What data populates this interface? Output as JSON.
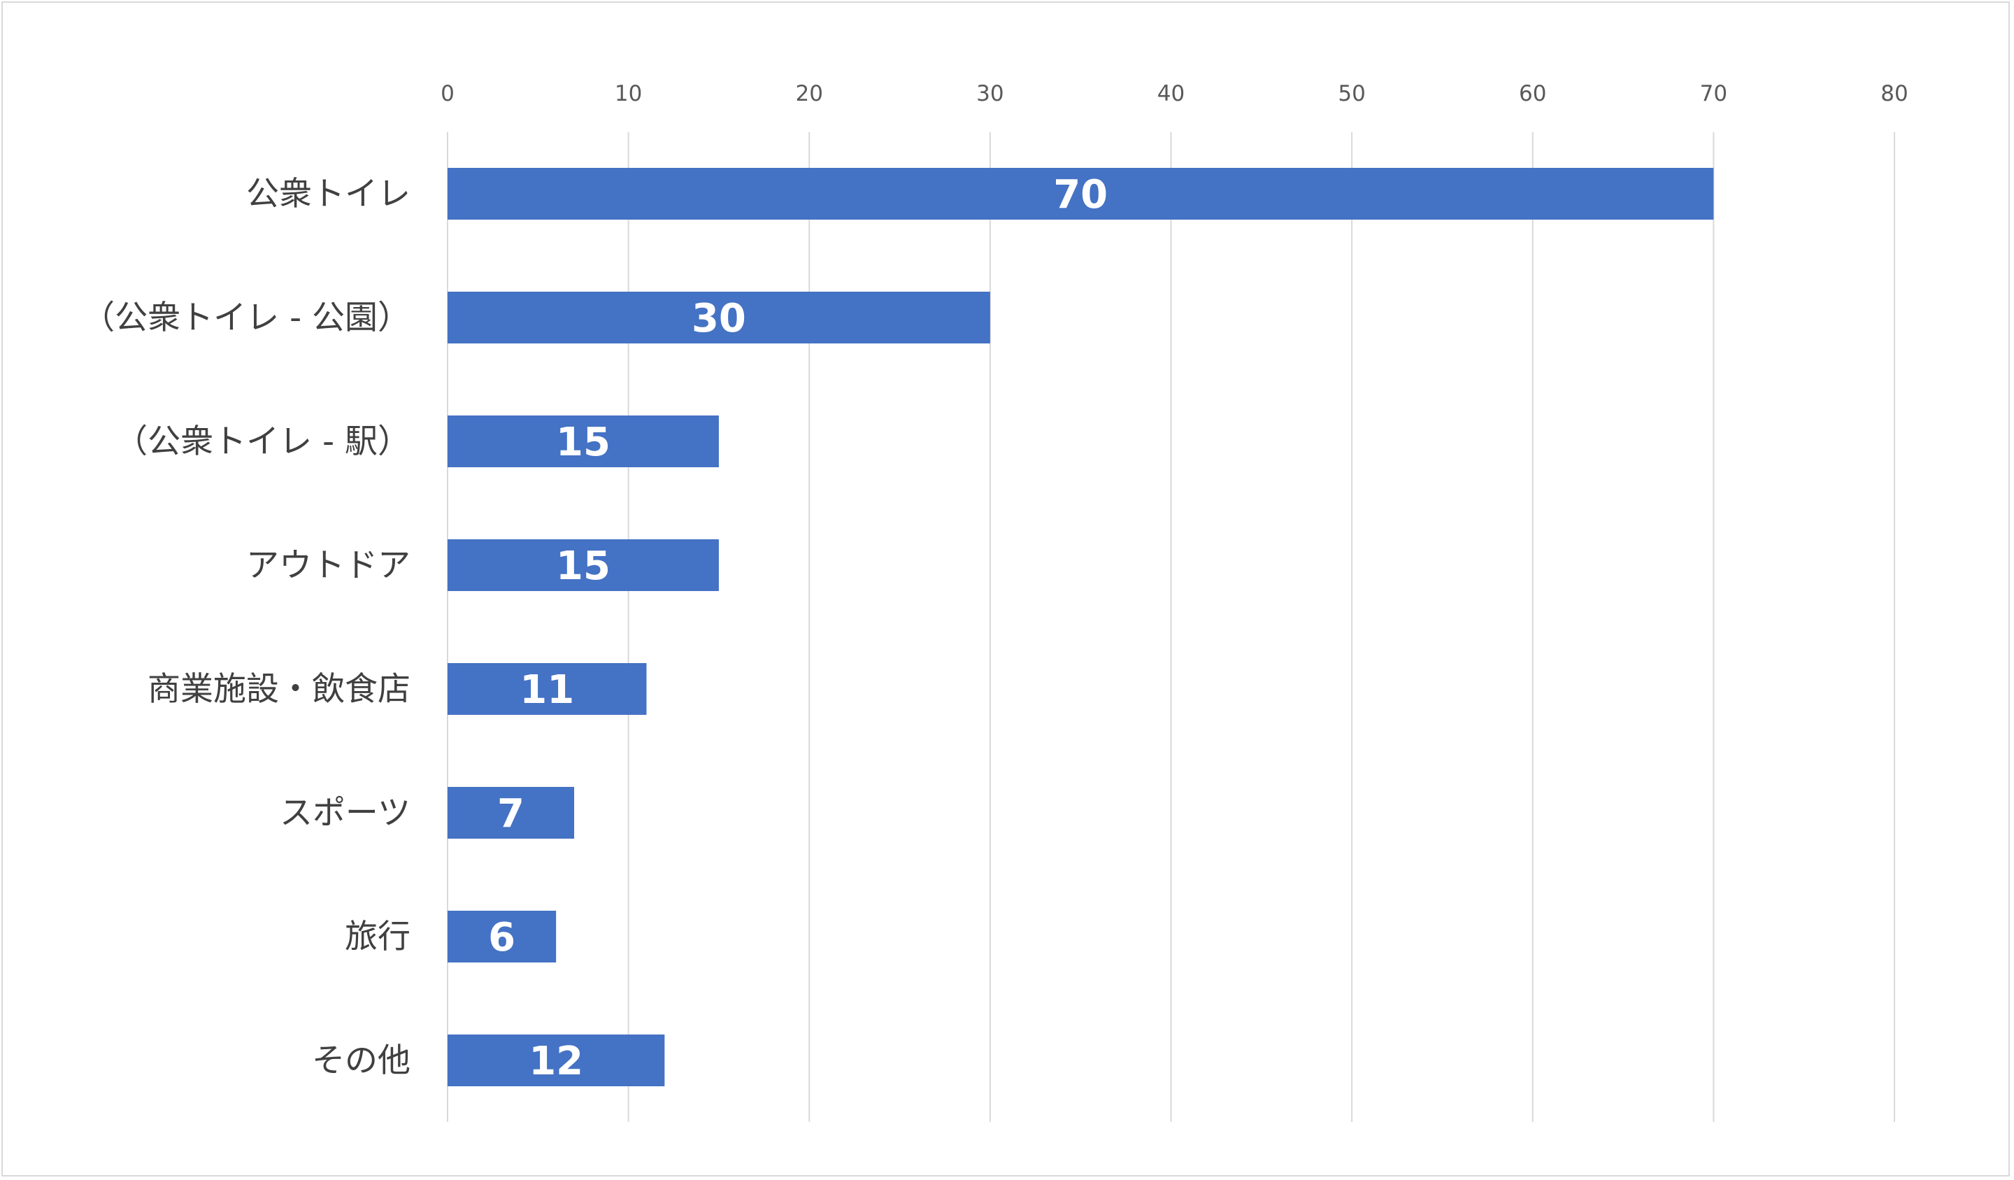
{
  "chart_data": {
    "type": "bar",
    "orientation": "horizontal",
    "title": "",
    "xlabel": "",
    "ylabel": "",
    "categories": [
      "公衆トイレ",
      "（公衆トイレ - 公園）",
      "（公衆トイレ - 駅）",
      "アウトドア",
      "商業施設・飲食店",
      "スポーツ",
      "旅行",
      "その他"
    ],
    "values": [
      70,
      30,
      15,
      15,
      11,
      7,
      6,
      12
    ],
    "data_labels": [
      "70",
      "30",
      "15",
      "15",
      "11",
      "7",
      "6",
      "12"
    ],
    "xlim": [
      0,
      80
    ],
    "ticks": [
      0,
      10,
      20,
      30,
      40,
      50,
      60,
      70,
      80
    ],
    "tick_labels": [
      "0",
      "10",
      "20",
      "30",
      "40",
      "50",
      "60",
      "70",
      "80"
    ],
    "axis_position": "top",
    "grid": true,
    "legend": "none",
    "colors": {
      "bar": "#4472C4",
      "grid": "#D9D9D9",
      "data_label": "#FFFFFF",
      "tick_label": "#595959",
      "category_label": "#404040"
    }
  }
}
